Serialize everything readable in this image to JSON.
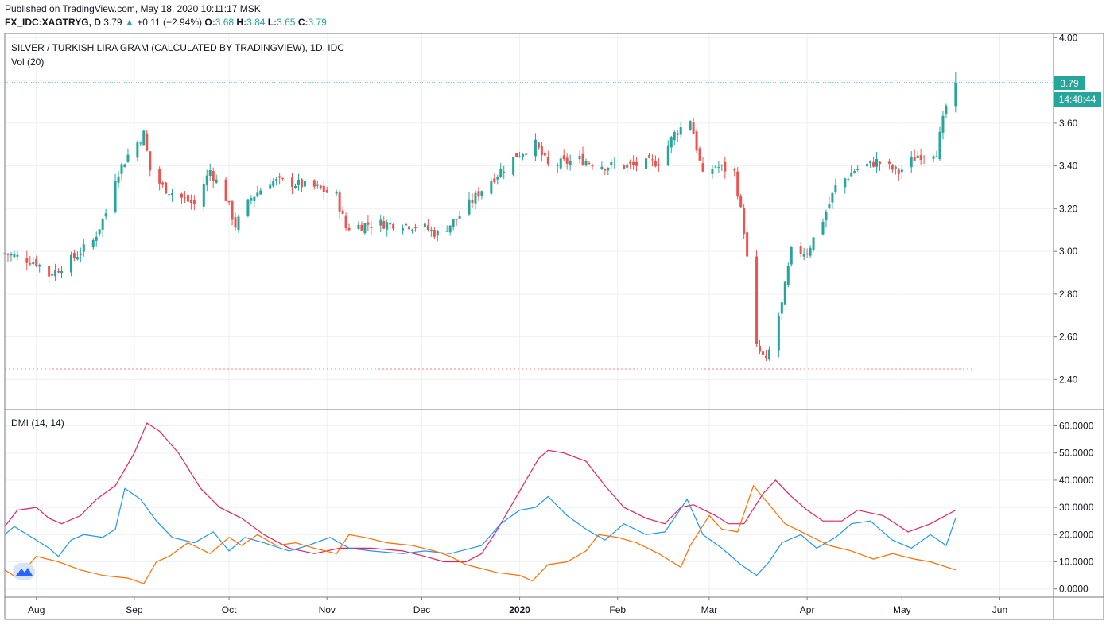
{
  "header": {
    "published": "Published on TradingView.com, May 18, 2020 10:11:17 MSK",
    "symbol": "FX_IDC:XAGTRYG, D",
    "price": "3.79",
    "change": "+0.11 (+2.94%)",
    "o_label": "O:",
    "o_value": "3.68",
    "h_label": "H:",
    "h_value": "3.84",
    "l_label": "L:",
    "l_value": "3.65",
    "c_label": "C:",
    "c_value": "3.79"
  },
  "main_pane": {
    "title": "SILVER / TURKISH LIRA GRAM (CALCULATED BY TRADINGVIEW), 1D, IDC",
    "volume_label": "Vol (20)",
    "last_price_badge": "3.79",
    "countdown_badge": "14:48:44"
  },
  "dmi_pane": {
    "title": "DMI (14, 14)"
  },
  "colors": {
    "up": "#26a69a",
    "down": "#ef5350",
    "adx": "#e91e63",
    "plus_di": "#2196f3",
    "minus_di": "#ff6d00",
    "grid": "#eef0f3",
    "border": "#787b86"
  },
  "chart_data": [
    {
      "type": "candlestick",
      "title": "SILVER / TURKISH LIRA GRAM (CALCULATED BY TRADINGVIEW), 1D, IDC",
      "x_range": [
        "2019-07-22",
        "2020-06-18"
      ],
      "ylim": [
        2.26,
        4.02
      ],
      "yticks": [
        "4.00",
        "3.80",
        "3.60",
        "3.40",
        "3.20",
        "3.00",
        "2.80",
        "2.60",
        "2.40"
      ],
      "xticks": [
        {
          "date": "2019-08-01",
          "label": "Aug"
        },
        {
          "date": "2019-09-01",
          "label": "Sep"
        },
        {
          "date": "2019-10-01",
          "label": "Oct"
        },
        {
          "date": "2019-11-01",
          "label": "Nov"
        },
        {
          "date": "2019-12-01",
          "label": "Dec"
        },
        {
          "date": "2020-01-01",
          "label": "2020"
        },
        {
          "date": "2020-02-01",
          "label": "Feb"
        },
        {
          "date": "2020-03-01",
          "label": "Mar"
        },
        {
          "date": "2020-04-01",
          "label": "Apr"
        },
        {
          "date": "2020-05-01",
          "label": "May"
        },
        {
          "date": "2020-06-01",
          "label": "Jun"
        }
      ],
      "last_price": 3.79,
      "reference_low": 2.45,
      "close_path": [
        [
          "2019-07-22",
          2.99
        ],
        [
          "2019-08-01",
          2.95
        ],
        [
          "2019-08-05",
          2.89
        ],
        [
          "2019-08-12",
          2.96
        ],
        [
          "2019-08-19",
          3.05
        ],
        [
          "2019-08-23",
          3.18
        ],
        [
          "2019-08-26",
          3.35
        ],
        [
          "2019-08-30",
          3.45
        ],
        [
          "2019-09-04",
          3.55
        ],
        [
          "2019-09-06",
          3.38
        ],
        [
          "2019-09-10",
          3.3
        ],
        [
          "2019-09-16",
          3.25
        ],
        [
          "2019-09-20",
          3.22
        ],
        [
          "2019-09-25",
          3.38
        ],
        [
          "2019-09-30",
          3.25
        ],
        [
          "2019-10-03",
          3.12
        ],
        [
          "2019-10-08",
          3.25
        ],
        [
          "2019-10-14",
          3.33
        ],
        [
          "2019-10-21",
          3.32
        ],
        [
          "2019-10-28",
          3.3
        ],
        [
          "2019-11-04",
          3.26
        ],
        [
          "2019-11-07",
          3.11
        ],
        [
          "2019-11-15",
          3.13
        ],
        [
          "2019-11-25",
          3.13
        ],
        [
          "2019-12-02",
          3.11
        ],
        [
          "2019-12-06",
          3.08
        ],
        [
          "2019-12-12",
          3.15
        ],
        [
          "2019-12-20",
          3.29
        ],
        [
          "2019-12-31",
          3.45
        ],
        [
          "2020-01-06",
          3.5
        ],
        [
          "2020-01-10",
          3.4
        ],
        [
          "2020-01-20",
          3.43
        ],
        [
          "2020-01-28",
          3.4
        ],
        [
          "2020-02-05",
          3.4
        ],
        [
          "2020-02-14",
          3.42
        ],
        [
          "2020-02-19",
          3.55
        ],
        [
          "2020-02-24",
          3.62
        ],
        [
          "2020-02-28",
          3.35
        ],
        [
          "2020-03-03",
          3.4
        ],
        [
          "2020-03-09",
          3.37
        ],
        [
          "2020-03-12",
          3.1
        ],
        [
          "2020-03-16",
          2.55
        ],
        [
          "2020-03-19",
          2.48
        ],
        [
          "2020-03-24",
          2.75
        ],
        [
          "2020-03-27",
          3.0
        ],
        [
          "2020-04-01",
          3.0
        ],
        [
          "2020-04-06",
          3.15
        ],
        [
          "2020-04-10",
          3.3
        ],
        [
          "2020-04-16",
          3.38
        ],
        [
          "2020-04-23",
          3.42
        ],
        [
          "2020-04-30",
          3.37
        ],
        [
          "2020-05-06",
          3.45
        ],
        [
          "2020-05-12",
          3.47
        ],
        [
          "2020-05-15",
          3.68
        ],
        [
          "2020-05-18",
          3.79
        ]
      ]
    },
    {
      "type": "line",
      "title": "DMI (14, 14)",
      "ylim": [
        -3,
        66
      ],
      "yticks": [
        "60.0000",
        "50.0000",
        "40.0000",
        "30.0000",
        "20.0000",
        "10.0000",
        "0.0000"
      ],
      "series": [
        {
          "key": "adx",
          "points": [
            [
              "2019-07-22",
              23
            ],
            [
              "2019-07-26",
              29
            ],
            [
              "2019-08-01",
              30
            ],
            [
              "2019-08-05",
              26
            ],
            [
              "2019-08-09",
              24
            ],
            [
              "2019-08-15",
              27
            ],
            [
              "2019-08-20",
              33
            ],
            [
              "2019-08-26",
              38
            ],
            [
              "2019-09-01",
              50
            ],
            [
              "2019-09-05",
              61
            ],
            [
              "2019-09-09",
              58
            ],
            [
              "2019-09-15",
              50
            ],
            [
              "2019-09-22",
              37
            ],
            [
              "2019-09-28",
              30
            ],
            [
              "2019-10-05",
              26
            ],
            [
              "2019-10-12",
              20
            ],
            [
              "2019-10-20",
              15
            ],
            [
              "2019-10-28",
              13
            ],
            [
              "2019-11-05",
              15
            ],
            [
              "2019-11-15",
              15
            ],
            [
              "2019-11-25",
              14
            ],
            [
              "2019-12-02",
              12
            ],
            [
              "2019-12-08",
              10
            ],
            [
              "2019-12-15",
              10
            ],
            [
              "2019-12-20",
              13
            ],
            [
              "2019-12-25",
              22
            ],
            [
              "2020-01-01",
              36
            ],
            [
              "2020-01-07",
              48
            ],
            [
              "2020-01-10",
              51
            ],
            [
              "2020-01-15",
              50
            ],
            [
              "2020-01-22",
              47
            ],
            [
              "2020-01-28",
              38
            ],
            [
              "2020-02-03",
              30
            ],
            [
              "2020-02-10",
              26
            ],
            [
              "2020-02-16",
              24
            ],
            [
              "2020-02-21",
              30
            ],
            [
              "2020-02-25",
              31
            ],
            [
              "2020-03-03",
              27
            ],
            [
              "2020-03-07",
              24
            ],
            [
              "2020-03-12",
              24
            ],
            [
              "2020-03-18",
              35
            ],
            [
              "2020-03-22",
              40
            ],
            [
              "2020-03-27",
              34
            ],
            [
              "2020-04-01",
              29
            ],
            [
              "2020-04-06",
              25
            ],
            [
              "2020-04-12",
              25
            ],
            [
              "2020-04-17",
              29
            ],
            [
              "2020-04-25",
              27
            ],
            [
              "2020-05-03",
              21
            ],
            [
              "2020-05-10",
              24
            ],
            [
              "2020-05-18",
              29
            ]
          ]
        },
        {
          "key": "plus_di",
          "points": [
            [
              "2019-07-22",
              20
            ],
            [
              "2019-07-25",
              23
            ],
            [
              "2019-08-01",
              18
            ],
            [
              "2019-08-05",
              15
            ],
            [
              "2019-08-08",
              12
            ],
            [
              "2019-08-12",
              18
            ],
            [
              "2019-08-16",
              20
            ],
            [
              "2019-08-22",
              19
            ],
            [
              "2019-08-26",
              22
            ],
            [
              "2019-08-29",
              37
            ],
            [
              "2019-09-03",
              33
            ],
            [
              "2019-09-08",
              25
            ],
            [
              "2019-09-13",
              19
            ],
            [
              "2019-09-20",
              17
            ],
            [
              "2019-09-26",
              21
            ],
            [
              "2019-10-01",
              14
            ],
            [
              "2019-10-06",
              19
            ],
            [
              "2019-10-12",
              17
            ],
            [
              "2019-10-20",
              14
            ],
            [
              "2019-10-26",
              16
            ],
            [
              "2019-11-02",
              19
            ],
            [
              "2019-11-08",
              15
            ],
            [
              "2019-11-15",
              14
            ],
            [
              "2019-11-25",
              13
            ],
            [
              "2019-12-02",
              14
            ],
            [
              "2019-12-10",
              13
            ],
            [
              "2019-12-20",
              16
            ],
            [
              "2019-12-26",
              24
            ],
            [
              "2020-01-01",
              29
            ],
            [
              "2020-01-06",
              30
            ],
            [
              "2020-01-10",
              34
            ],
            [
              "2020-01-16",
              27
            ],
            [
              "2020-01-22",
              22
            ],
            [
              "2020-01-28",
              18
            ],
            [
              "2020-02-03",
              24
            ],
            [
              "2020-02-10",
              20
            ],
            [
              "2020-02-16",
              21
            ],
            [
              "2020-02-23",
              33
            ],
            [
              "2020-02-28",
              20
            ],
            [
              "2020-03-05",
              15
            ],
            [
              "2020-03-11",
              9
            ],
            [
              "2020-03-16",
              5
            ],
            [
              "2020-03-20",
              10
            ],
            [
              "2020-03-24",
              17
            ],
            [
              "2020-03-30",
              20
            ],
            [
              "2020-04-04",
              15
            ],
            [
              "2020-04-10",
              19
            ],
            [
              "2020-04-15",
              24
            ],
            [
              "2020-04-21",
              25
            ],
            [
              "2020-04-28",
              18
            ],
            [
              "2020-05-04",
              15
            ],
            [
              "2020-05-10",
              20
            ],
            [
              "2020-05-15",
              16
            ],
            [
              "2020-05-18",
              26
            ]
          ]
        },
        {
          "key": "minus_di",
          "points": [
            [
              "2019-07-22",
              7
            ],
            [
              "2019-07-26",
              4
            ],
            [
              "2019-08-01",
              12
            ],
            [
              "2019-08-08",
              10
            ],
            [
              "2019-08-15",
              7
            ],
            [
              "2019-08-22",
              5
            ],
            [
              "2019-08-30",
              4
            ],
            [
              "2019-09-04",
              2
            ],
            [
              "2019-09-08",
              10
            ],
            [
              "2019-09-12",
              12
            ],
            [
              "2019-09-18",
              17
            ],
            [
              "2019-09-25",
              13
            ],
            [
              "2019-10-01",
              19
            ],
            [
              "2019-10-05",
              16
            ],
            [
              "2019-10-10",
              20
            ],
            [
              "2019-10-16",
              16
            ],
            [
              "2019-10-22",
              17
            ],
            [
              "2019-10-28",
              15
            ],
            [
              "2019-11-04",
              13
            ],
            [
              "2019-11-08",
              20
            ],
            [
              "2019-11-13",
              19
            ],
            [
              "2019-11-20",
              17
            ],
            [
              "2019-11-28",
              16
            ],
            [
              "2019-12-05",
              14
            ],
            [
              "2019-12-10",
              12
            ],
            [
              "2019-12-15",
              9
            ],
            [
              "2019-12-25",
              6
            ],
            [
              "2020-01-01",
              5
            ],
            [
              "2020-01-05",
              3
            ],
            [
              "2020-01-10",
              9
            ],
            [
              "2020-01-16",
              10
            ],
            [
              "2020-01-22",
              14
            ],
            [
              "2020-01-26",
              20
            ],
            [
              "2020-02-01",
              19
            ],
            [
              "2020-02-07",
              17
            ],
            [
              "2020-02-14",
              13
            ],
            [
              "2020-02-21",
              8
            ],
            [
              "2020-02-24",
              16
            ],
            [
              "2020-03-01",
              27
            ],
            [
              "2020-03-05",
              22
            ],
            [
              "2020-03-10",
              21
            ],
            [
              "2020-03-15",
              38
            ],
            [
              "2020-03-20",
              31
            ],
            [
              "2020-03-25",
              24
            ],
            [
              "2020-04-01",
              20
            ],
            [
              "2020-04-08",
              16
            ],
            [
              "2020-04-15",
              14
            ],
            [
              "2020-04-22",
              11
            ],
            [
              "2020-04-28",
              13
            ],
            [
              "2020-05-05",
              11
            ],
            [
              "2020-05-10",
              10
            ],
            [
              "2020-05-18",
              7
            ]
          ]
        }
      ]
    }
  ]
}
